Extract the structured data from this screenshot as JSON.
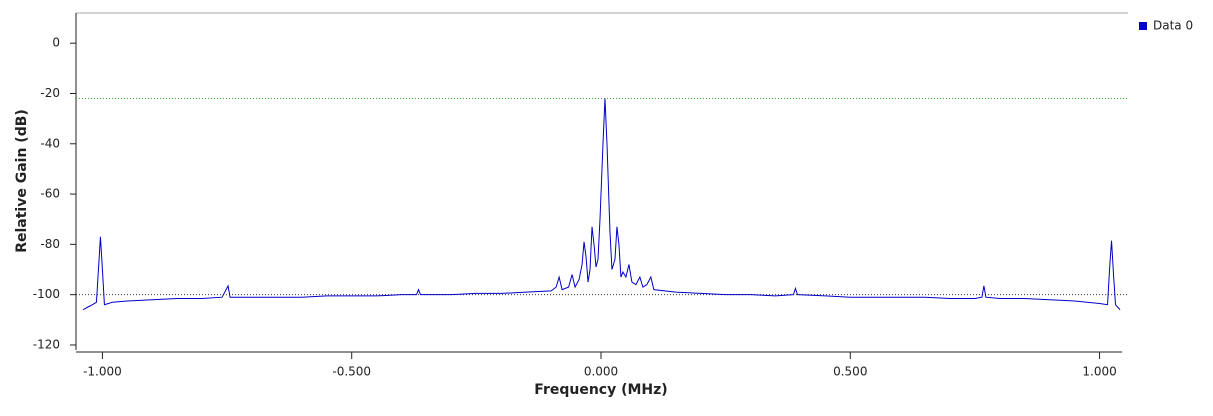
{
  "chart_data": {
    "type": "line",
    "xlabel": "Frequency (MHz)",
    "ylabel": "Relative Gain (dB)",
    "x": [
      -1.039,
      -1.03,
      -1.02,
      -1.012,
      -1.008,
      -1.004,
      -1.0,
      -0.996,
      -0.98,
      -0.95,
      -0.9,
      -0.85,
      -0.8,
      -0.76,
      -0.748,
      -0.744,
      -0.7,
      -0.65,
      -0.6,
      -0.55,
      -0.5,
      -0.45,
      -0.4,
      -0.37,
      -0.366,
      -0.362,
      -0.3,
      -0.25,
      -0.2,
      -0.15,
      -0.1,
      -0.09,
      -0.084,
      -0.078,
      -0.065,
      -0.058,
      -0.052,
      -0.044,
      -0.038,
      -0.034,
      -0.03,
      -0.026,
      -0.022,
      -0.018,
      -0.014,
      -0.01,
      -0.006,
      -0.002,
      0.004,
      0.008,
      0.012,
      0.018,
      0.022,
      0.028,
      0.032,
      0.036,
      0.04,
      0.044,
      0.05,
      0.056,
      0.062,
      0.07,
      0.078,
      0.084,
      0.092,
      0.1,
      0.106,
      0.15,
      0.2,
      0.25,
      0.3,
      0.35,
      0.386,
      0.39,
      0.394,
      0.45,
      0.5,
      0.55,
      0.6,
      0.65,
      0.7,
      0.75,
      0.764,
      0.768,
      0.772,
      0.8,
      0.85,
      0.9,
      0.95,
      1.0,
      1.016,
      1.02,
      1.024,
      1.028,
      1.032,
      1.041
    ],
    "series": [
      {
        "name": "Data 0",
        "color": "#0000c8",
        "values": [
          -106,
          -105,
          -104,
          -103,
          -90,
          -77,
          -90,
          -104,
          -103,
          -102.5,
          -102,
          -101.5,
          -101.5,
          -101,
          -96.5,
          -101,
          -101,
          -101,
          -101,
          -100.5,
          -100.5,
          -100.5,
          -100,
          -100,
          -98,
          -100,
          -100,
          -99.5,
          -99.5,
          -99,
          -98.5,
          -97,
          -93,
          -98,
          -97,
          -92,
          -97,
          -94,
          -88,
          -79,
          -85,
          -95,
          -90,
          -73,
          -80,
          -89,
          -86,
          -70,
          -40,
          -22,
          -40,
          -75,
          -90,
          -86,
          -73,
          -80,
          -93,
          -91,
          -93,
          -88,
          -95,
          -96,
          -93,
          -97,
          -96,
          -93,
          -98,
          -99,
          -99.5,
          -100,
          -100,
          -100.5,
          -100,
          -97.5,
          -100,
          -100.5,
          -101,
          -101,
          -101,
          -101,
          -101.5,
          -101.5,
          -101,
          -96.5,
          -101,
          -101.5,
          -101.5,
          -102,
          -102.5,
          -103.5,
          -104,
          -90,
          -78.5,
          -92,
          -104,
          -106
        ]
      }
    ],
    "xlim": [
      -1.053,
      1.045
    ],
    "ylim": [
      -122,
      12
    ],
    "xticks": [
      {
        "value": -1,
        "label": "-1.000"
      },
      {
        "value": -0.5,
        "label": "-0.500"
      },
      {
        "value": 0,
        "label": "0.000"
      },
      {
        "value": 0.5,
        "label": "0.500"
      },
      {
        "value": 1,
        "label": "1.000"
      }
    ],
    "yticks": [
      0,
      -20,
      -40,
      -60,
      -80,
      -100,
      -120
    ],
    "hlines": [
      {
        "value": -22,
        "color": "#33aa33"
      },
      {
        "value": -100,
        "color": "#333333"
      }
    ],
    "legend": "top-right"
  }
}
